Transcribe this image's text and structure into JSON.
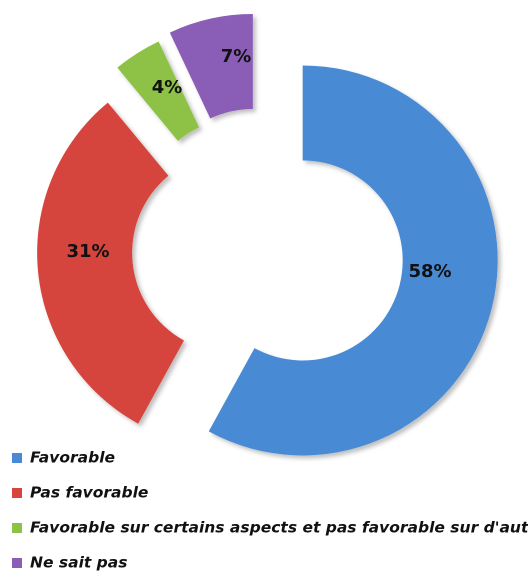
{
  "chart_data": {
    "type": "pie",
    "categories": [
      "Favorable",
      "Pas favorable",
      "Favorable sur certains aspects et pas favorable sur d'autres",
      "Ne sait pas"
    ],
    "values": [
      58,
      31,
      4,
      7
    ],
    "value_labels": [
      "58%",
      "31%",
      "4%",
      "7%"
    ],
    "colors": [
      "#4a8ad4",
      "#d6443d",
      "#8ec246",
      "#8a5db6"
    ],
    "donut": true
  }
}
